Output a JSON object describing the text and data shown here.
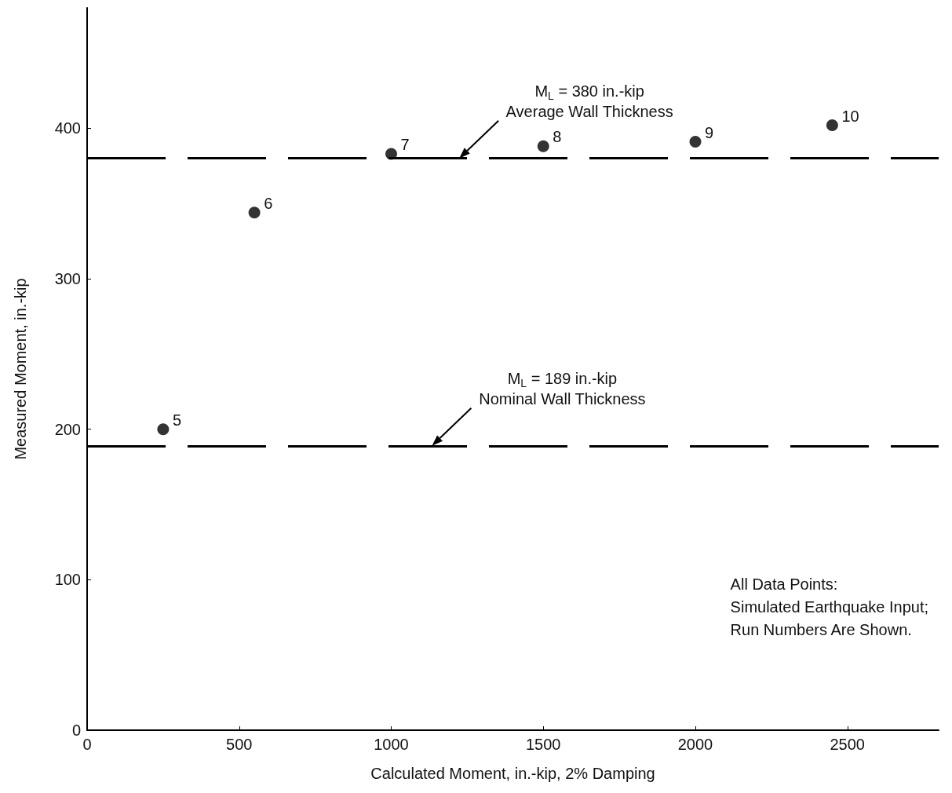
{
  "chart_data": {
    "type": "scatter",
    "xlabel": "Calculated Moment, in.-kip, 2% Damping",
    "ylabel": "Measured Moment, in.-kip",
    "x": [
      250,
      550,
      1000,
      1500,
      2000,
      2450
    ],
    "values": [
      200,
      344,
      383,
      388,
      391,
      402
    ],
    "color": "#000000",
    "marker": "circle",
    "xlim": [
      0,
      2800
    ],
    "xticks": [
      0,
      500,
      1000,
      1500,
      2000,
      2500
    ],
    "ylim": [
      0,
      480
    ],
    "yticks": [
      0,
      100,
      200,
      300,
      400
    ],
    "ref_lines": [
      {
        "axis": "y",
        "value": 380,
        "color": "#000000",
        "line_style": "dashed",
        "label": "M$_{L}$ = 380 in.-kip\nAverage Wall Thickness"
      },
      {
        "axis": "y",
        "value": 189,
        "color": "#000000",
        "line_style": "dashed",
        "label": "M$_{L}$ = 189 in.-kip\nNominal Wall Thickness"
      }
    ],
    "annotations": [
      {
        "text": "5",
        "x": 250,
        "y": 200
      },
      {
        "text": "6",
        "x": 550,
        "y": 344
      },
      {
        "text": "7",
        "x": 1000,
        "y": 383
      },
      {
        "text": "8",
        "x": 1500,
        "y": 388
      },
      {
        "text": "9",
        "x": 2000,
        "y": 391
      },
      {
        "text": "10",
        "x": 2450,
        "y": 402
      },
      "All Data Points:\nSimulated Earthquake Input;\nRun Numbers Are Shown."
    ]
  }
}
